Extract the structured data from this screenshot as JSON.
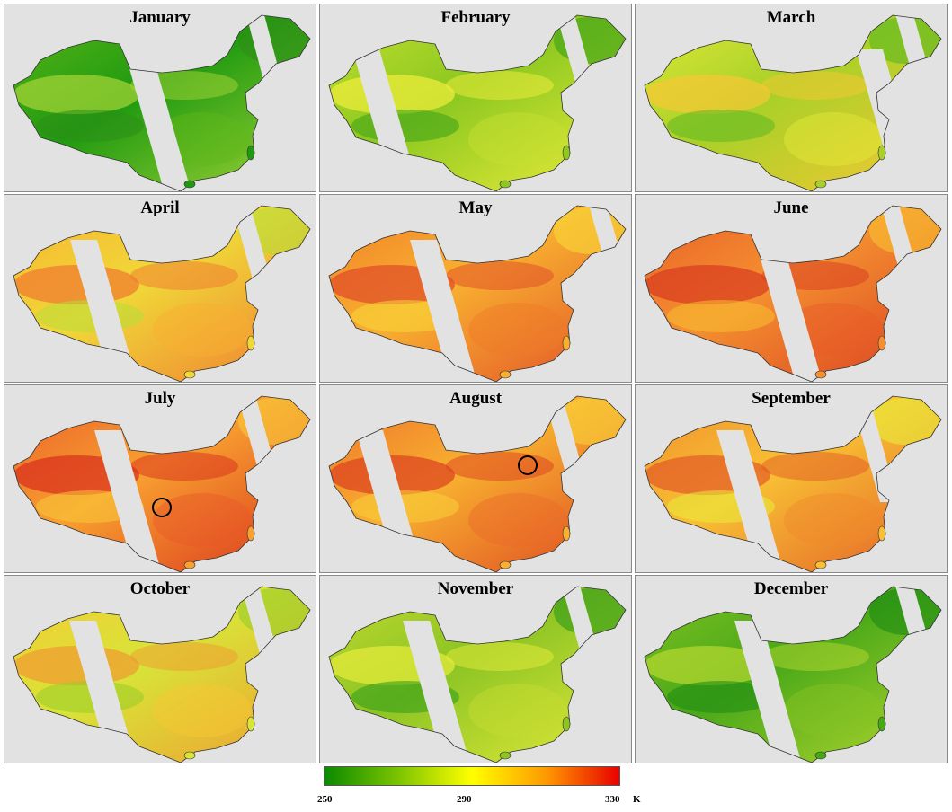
{
  "figure": {
    "panels": [
      {
        "title": "January",
        "colors": [
          "#1f9a10",
          "#5fb818",
          "#a8d638",
          "#2e8e18"
        ]
      },
      {
        "title": "February",
        "colors": [
          "#8cc820",
          "#c8e030",
          "#f2ee3c",
          "#3aa018"
        ]
      },
      {
        "title": "March",
        "colors": [
          "#a8d028",
          "#e6ec3a",
          "#f8c834",
          "#5cb820"
        ]
      },
      {
        "title": "April",
        "colors": [
          "#f0d838",
          "#f8b030",
          "#f07830",
          "#b8dc38"
        ]
      },
      {
        "title": "May",
        "colors": [
          "#f8b030",
          "#f07a28",
          "#e04a28",
          "#f8d838"
        ]
      },
      {
        "title": "June",
        "colors": [
          "#f49030",
          "#e85a28",
          "#d83a20",
          "#f8c030"
        ]
      },
      {
        "title": "July",
        "colors": [
          "#f8a030",
          "#e85828",
          "#d82e1c",
          "#f8c838"
        ]
      },
      {
        "title": "August",
        "colors": [
          "#f8b030",
          "#ec6a2a",
          "#dc4020",
          "#f8d038"
        ]
      },
      {
        "title": "September",
        "colors": [
          "#f8c034",
          "#f08a2c",
          "#e25a26",
          "#e8ec3a"
        ]
      },
      {
        "title": "October",
        "colors": [
          "#d8e438",
          "#f8c834",
          "#f09a30",
          "#98cc28"
        ]
      },
      {
        "title": "November",
        "colors": [
          "#8cc424",
          "#c8dc30",
          "#e8ec3a",
          "#2e9a18"
        ]
      },
      {
        "title": "December",
        "colors": [
          "#48a818",
          "#88c424",
          "#b8d830",
          "#1c8a12"
        ]
      }
    ]
  },
  "legend": {
    "ticks": [
      {
        "label": "250"
      },
      {
        "label": "290"
      },
      {
        "label": "330"
      }
    ],
    "unit": "K",
    "colors": [
      "#0a8a00",
      "#7cc400",
      "#ffff00",
      "#ff9a00",
      "#e80000"
    ]
  },
  "annotations": {
    "circles": [
      {
        "panel": "July",
        "description": "circled hotspot"
      },
      {
        "panel": "August",
        "description": "circled hotspot"
      }
    ]
  }
}
